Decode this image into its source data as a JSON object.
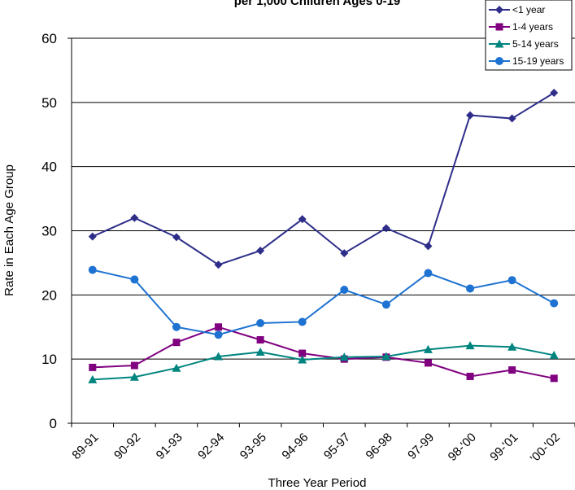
{
  "chart_data": {
    "type": "line",
    "title": "per 1,000 Children Ages 0-19",
    "xlabel": "Three Year Period",
    "ylabel": "Rate in Each Age Group",
    "categories": [
      "89-91",
      "90-92",
      "91-93",
      "92-94",
      "93-95",
      "94-96",
      "95-97",
      "96-98",
      "97-99",
      "98-'00",
      "99-'01",
      "'00-'02"
    ],
    "ylim": [
      0,
      60
    ],
    "yticks": [
      0,
      10,
      20,
      30,
      40,
      50,
      60
    ],
    "grid": true,
    "legend_position": "top-right",
    "series": [
      {
        "name": "<1 year",
        "color": "#2e2e8a",
        "marker": "diamond",
        "values": [
          29.1,
          32.0,
          29.0,
          24.7,
          26.9,
          31.8,
          26.5,
          30.4,
          27.6,
          48.0,
          47.5,
          51.5
        ]
      },
      {
        "name": "1-4 years",
        "color": "#800080",
        "marker": "square",
        "values": [
          8.7,
          9.0,
          12.6,
          15.0,
          13.0,
          10.9,
          10.0,
          10.3,
          9.4,
          7.3,
          8.3,
          7.0
        ]
      },
      {
        "name": "5-14 years",
        "color": "#00857f",
        "marker": "triangle",
        "values": [
          6.8,
          7.2,
          8.6,
          10.4,
          11.1,
          9.9,
          10.3,
          10.4,
          11.5,
          12.1,
          11.9,
          10.6
        ]
      },
      {
        "name": "15-19 years",
        "color": "#1e73d2",
        "marker": "circle",
        "values": [
          23.9,
          22.4,
          15.0,
          13.8,
          15.6,
          15.8,
          20.8,
          18.5,
          23.4,
          21.0,
          22.3,
          18.7
        ]
      }
    ]
  }
}
